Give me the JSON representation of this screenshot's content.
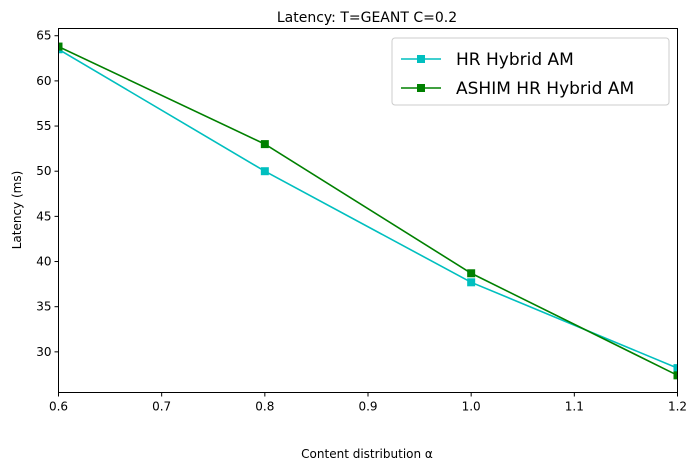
{
  "chart_data": {
    "type": "line",
    "title": "Latency: T=GEANT C=0.2",
    "xlabel": "Content distribution α",
    "ylabel": "Latency (ms)",
    "xlim": [
      0.6,
      1.2
    ],
    "ylim": [
      25.5,
      65.8
    ],
    "xticks": [
      "0.6",
      "0.7",
      "0.8",
      "0.9",
      "1.0",
      "1.1",
      "1.2"
    ],
    "yticks": [
      "30",
      "35",
      "40",
      "45",
      "50",
      "55",
      "60",
      "65"
    ],
    "grid": false,
    "legend_position": "top-right",
    "x": [
      0.6,
      0.8,
      1.0,
      1.2
    ],
    "series": [
      {
        "name": "HR Hybrid AM",
        "color": "#00bfbf",
        "marker": "square",
        "values": [
          63.5,
          50.0,
          37.7,
          28.2
        ]
      },
      {
        "name": "ASHIM HR Hybrid AM",
        "color": "#008000",
        "marker": "square",
        "values": [
          63.8,
          53.0,
          38.7,
          27.4
        ]
      }
    ]
  }
}
